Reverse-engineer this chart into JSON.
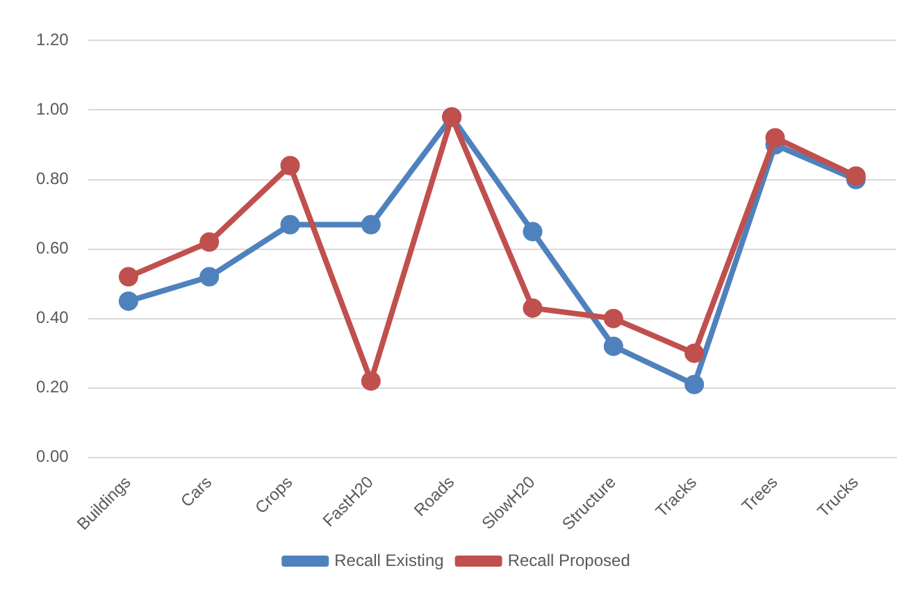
{
  "chart_data": {
    "type": "line",
    "categories": [
      "Buildings",
      "Cars",
      "Crops",
      "FastH20",
      "Roads",
      "SlowH20",
      "Structure",
      "Tracks",
      "Trees",
      "Trucks"
    ],
    "series": [
      {
        "name": "Recall Existing",
        "color": "#4f81bd",
        "values": [
          0.45,
          0.52,
          0.67,
          0.67,
          0.98,
          0.65,
          0.32,
          0.21,
          0.9,
          0.8
        ]
      },
      {
        "name": "Recall Proposed",
        "color": "#c0504d",
        "values": [
          0.52,
          0.62,
          0.84,
          0.22,
          0.98,
          0.43,
          0.4,
          0.3,
          0.92,
          0.81
        ]
      }
    ],
    "ylim": [
      0,
      1.2
    ],
    "yticks": [
      {
        "value": 0,
        "label": "0.00"
      },
      {
        "value": 0.2,
        "label": "0.20"
      },
      {
        "value": 0.4,
        "label": "0.40"
      },
      {
        "value": 0.6,
        "label": "0.60"
      },
      {
        "value": 0.8,
        "label": "0.80"
      },
      {
        "value": 1,
        "label": "1.00"
      },
      {
        "value": 1.2,
        "label": "1.20"
      }
    ],
    "grid": "y",
    "legend": "bottom",
    "marker": "circle",
    "line_style": "solid"
  }
}
